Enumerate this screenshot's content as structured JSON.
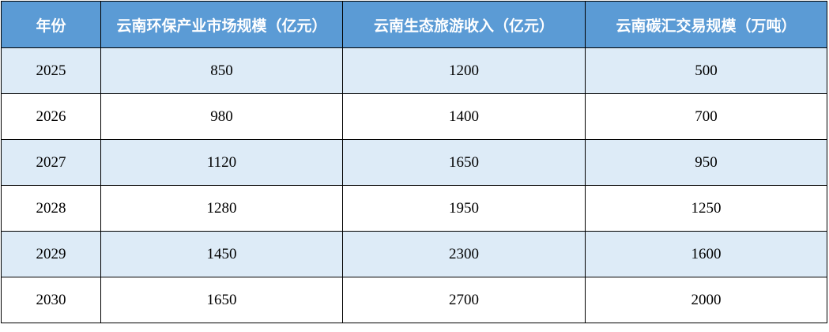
{
  "table": {
    "headers": [
      "年份",
      "云南环保产业市场规模（亿元）",
      "云南生态旅游收入（亿元）",
      "云南碳汇交易规模（万吨）"
    ],
    "rows": [
      [
        "2025",
        "850",
        "1200",
        "500"
      ],
      [
        "2026",
        "980",
        "1400",
        "700"
      ],
      [
        "2027",
        "1120",
        "1650",
        "950"
      ],
      [
        "2028",
        "1280",
        "1950",
        "1250"
      ],
      [
        "2029",
        "1450",
        "2300",
        "1600"
      ],
      [
        "2030",
        "1650",
        "2700",
        "2000"
      ]
    ]
  },
  "colors": {
    "header_bg": "#5b9bd5",
    "band_bg": "#ddebf7",
    "header_text": "#ffffff"
  }
}
